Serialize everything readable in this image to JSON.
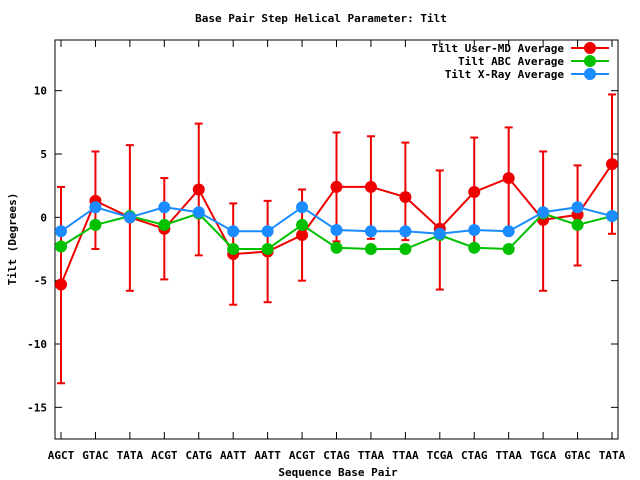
{
  "chart_data": {
    "type": "line",
    "title": "Base Pair Step Helical Parameter: Tilt",
    "xlabel": "Sequence Base Pair",
    "ylabel": "Tilt (Degrees)",
    "categories": [
      "AGCT",
      "GTAC",
      "TATA",
      "ACGT",
      "CATG",
      "AATT",
      "AATT",
      "ACGT",
      "CTAG",
      "TTAA",
      "TTAA",
      "TCGA",
      "CTAG",
      "TTAA",
      "TGCA",
      "GTAC",
      "TATA"
    ],
    "ylim": [
      -17.5,
      14
    ],
    "yticks": [
      -15,
      -10,
      -5,
      0,
      5,
      10
    ],
    "grid": false,
    "legend": "top-right",
    "series": [
      {
        "name": "Tilt User-MD Average",
        "color": "#ee0000",
        "values": [
          -5.3,
          1.3,
          0.0,
          -0.9,
          2.2,
          -2.9,
          -2.7,
          -1.4,
          2.4,
          2.4,
          1.6,
          -0.9,
          2.0,
          3.1,
          -0.2,
          0.2,
          4.2
        ],
        "err_low": [
          -13.1,
          -2.5,
          -5.8,
          -4.9,
          -3.0,
          -6.9,
          -6.7,
          -5.0,
          -1.9,
          -1.7,
          -1.8,
          -5.7,
          -2.4,
          -0.9,
          -5.8,
          -3.8,
          -1.3
        ],
        "err_high": [
          2.4,
          5.2,
          5.7,
          3.1,
          7.4,
          1.1,
          1.3,
          2.2,
          6.7,
          6.4,
          5.9,
          3.7,
          6.3,
          7.1,
          5.2,
          4.1,
          9.7
        ]
      },
      {
        "name": "Tilt ABC Average",
        "color": "#00c000",
        "values": [
          -2.3,
          -0.6,
          0.1,
          -0.6,
          0.3,
          -2.5,
          -2.5,
          -0.6,
          -2.4,
          -2.5,
          -2.5,
          -1.4,
          -2.4,
          -2.5,
          0.3,
          -0.6,
          0.1
        ]
      },
      {
        "name": "Tilt X-Ray Average",
        "color": "#1a8cff",
        "values": [
          -1.1,
          0.8,
          0.0,
          0.8,
          0.4,
          -1.1,
          -1.1,
          0.8,
          -1.0,
          -1.1,
          -1.1,
          -1.3,
          -1.0,
          -1.1,
          0.4,
          0.8,
          0.1
        ]
      }
    ]
  }
}
